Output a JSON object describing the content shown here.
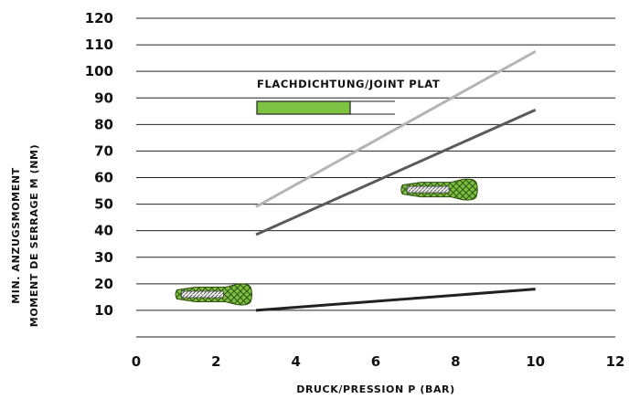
{
  "chart_data": {
    "type": "line",
    "xlabel": "DRUCK/PRESSION P (BAR)",
    "ylabel_lines": [
      "MIN. ANZUGSMOMENT",
      "MOMENT DE SERRAGE M (NM)"
    ],
    "xlim": [
      0,
      12
    ],
    "ylim": [
      0,
      120
    ],
    "x_ticks": [
      "0",
      "2",
      "4",
      "6",
      "8",
      "10",
      "12"
    ],
    "y_ticks": [
      "10",
      "20",
      "30",
      "40",
      "50",
      "60",
      "70",
      "80",
      "90",
      "100",
      "110",
      "120"
    ],
    "grid": "horizontal",
    "legend": {
      "label": "FLACHDICHTUNG/JOINT PLAT",
      "color": "#7dc242"
    },
    "series": [
      {
        "color": "#222222",
        "points": [
          [
            3,
            10
          ],
          [
            10,
            18
          ]
        ]
      },
      {
        "color": "#5a5a5a",
        "points": [
          [
            3,
            38.5
          ],
          [
            10,
            85.5
          ]
        ]
      },
      {
        "color": "#b4b4b4",
        "points": [
          [
            3,
            49
          ],
          [
            10,
            107.5
          ]
        ]
      }
    ],
    "markers": [
      {
        "x": 2.05,
        "y": 16,
        "icon": "hose-fitting-icon"
      },
      {
        "x": 7.7,
        "y": 55.5,
        "icon": "hose-fitting-icon"
      }
    ]
  }
}
